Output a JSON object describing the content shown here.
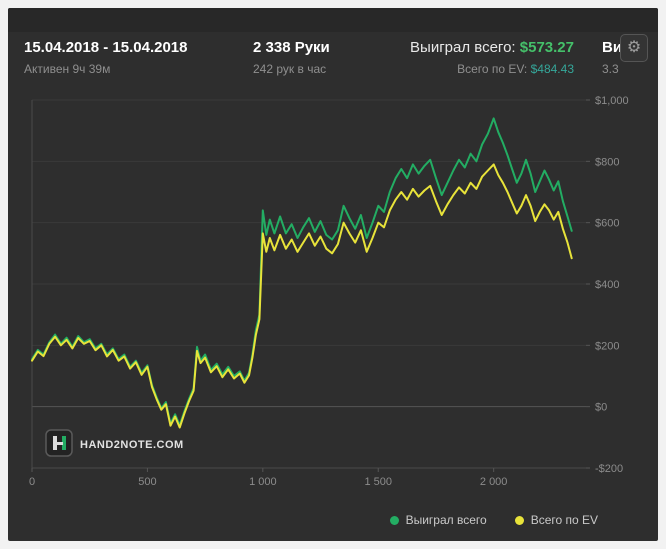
{
  "header": {
    "date_range": "15.04.2018 - 15.04.2018",
    "active_time": "Активен 9ч 39м",
    "hands": "2 338 Руки",
    "hands_per_hour": "242 рук в час",
    "won_label": "Выиграл всего:",
    "won_value": "$573.27",
    "ev_label": "Всего по EV:",
    "ev_value": "$484.43",
    "clipped_line1": "Ви",
    "clipped_line2": "3.3"
  },
  "icons": {
    "gear_glyph": "⚙"
  },
  "watermark": {
    "text": "HAND2NOTE.COM"
  },
  "colors": {
    "panel_bg": "#2e2e2e",
    "won_value": "#45c06a",
    "ev_value": "#35a79a",
    "series_won": "#23ad63",
    "series_ev": "#e8e33a",
    "grid": "#3a3a3a",
    "zero_line": "#565656",
    "axis_text": "#8c8c8c"
  },
  "legend": [
    {
      "label": "Выиграл всего",
      "color": "#23ad63"
    },
    {
      "label": "Всего по EV",
      "color": "#e8e33a"
    }
  ],
  "chart_data": {
    "type": "line",
    "title": "",
    "xlabel": "",
    "ylabel": "",
    "xlim": [
      0,
      2400
    ],
    "ylim": [
      -200,
      1000
    ],
    "grid": "horizontal",
    "legend_position": "bottom",
    "x_ticks": [
      {
        "v": 0,
        "label": "0"
      },
      {
        "v": 500,
        "label": "500"
      },
      {
        "v": 1000,
        "label": "1 000"
      },
      {
        "v": 1500,
        "label": "1 500"
      },
      {
        "v": 2000,
        "label": "2 000"
      }
    ],
    "y_ticks": [
      {
        "v": 1000,
        "label": "$1,000"
      },
      {
        "v": 800,
        "label": "$800"
      },
      {
        "v": 600,
        "label": "$600"
      },
      {
        "v": 400,
        "label": "$400"
      },
      {
        "v": 200,
        "label": "$200"
      },
      {
        "v": 0,
        "label": "$0"
      },
      {
        "v": -200,
        "label": "-$200"
      }
    ],
    "x": [
      0,
      25,
      50,
      75,
      100,
      125,
      150,
      175,
      200,
      225,
      250,
      275,
      300,
      325,
      350,
      375,
      400,
      425,
      450,
      475,
      500,
      520,
      540,
      560,
      580,
      600,
      620,
      640,
      660,
      680,
      700,
      715,
      730,
      750,
      775,
      800,
      825,
      850,
      875,
      900,
      920,
      940,
      955,
      970,
      985,
      1000,
      1015,
      1030,
      1050,
      1075,
      1100,
      1125,
      1150,
      1175,
      1200,
      1225,
      1250,
      1275,
      1300,
      1325,
      1350,
      1375,
      1400,
      1425,
      1450,
      1475,
      1500,
      1525,
      1550,
      1575,
      1600,
      1625,
      1650,
      1675,
      1700,
      1725,
      1750,
      1775,
      1800,
      1825,
      1850,
      1875,
      1900,
      1925,
      1950,
      1975,
      2000,
      2020,
      2040,
      2060,
      2080,
      2100,
      2120,
      2140,
      2160,
      2180,
      2200,
      2220,
      2240,
      2260,
      2280,
      2300,
      2320,
      2338
    ],
    "series": [
      {
        "name": "Выиграл всего",
        "color": "#23ad63",
        "final_value": 573.27,
        "values": [
          155,
          185,
          170,
          210,
          235,
          205,
          225,
          195,
          230,
          210,
          220,
          190,
          205,
          170,
          190,
          155,
          170,
          130,
          150,
          110,
          135,
          70,
          30,
          -5,
          15,
          -55,
          -25,
          -60,
          -15,
          25,
          60,
          195,
          150,
          170,
          120,
          140,
          105,
          130,
          100,
          115,
          85,
          110,
          170,
          250,
          300,
          640,
          560,
          610,
          565,
          620,
          565,
          595,
          550,
          585,
          615,
          570,
          605,
          560,
          545,
          575,
          655,
          615,
          580,
          625,
          550,
          600,
          655,
          635,
          700,
          745,
          775,
          745,
          790,
          760,
          785,
          805,
          745,
          690,
          730,
          770,
          805,
          780,
          825,
          800,
          855,
          890,
          940,
          895,
          860,
          820,
          775,
          730,
          760,
          805,
          760,
          700,
          735,
          770,
          740,
          705,
          735,
          670,
          620,
          573
        ]
      },
      {
        "name": "Всего по EV",
        "color": "#e8e33a",
        "final_value": 484.43,
        "values": [
          150,
          180,
          165,
          205,
          228,
          200,
          218,
          190,
          224,
          205,
          214,
          184,
          200,
          164,
          185,
          150,
          164,
          124,
          145,
          104,
          130,
          64,
          24,
          -10,
          8,
          -62,
          -32,
          -68,
          -22,
          18,
          52,
          182,
          142,
          160,
          112,
          132,
          96,
          122,
          92,
          108,
          78,
          102,
          160,
          235,
          285,
          565,
          505,
          550,
          510,
          560,
          515,
          545,
          505,
          535,
          565,
          525,
          555,
          515,
          500,
          530,
          600,
          565,
          535,
          575,
          505,
          550,
          600,
          585,
          640,
          675,
          700,
          675,
          710,
          685,
          705,
          720,
          670,
          625,
          660,
          690,
          715,
          695,
          730,
          710,
          750,
          770,
          790,
          755,
          730,
          700,
          665,
          630,
          655,
          690,
          655,
          605,
          635,
          660,
          640,
          610,
          635,
          580,
          535,
          484
        ]
      }
    ]
  }
}
